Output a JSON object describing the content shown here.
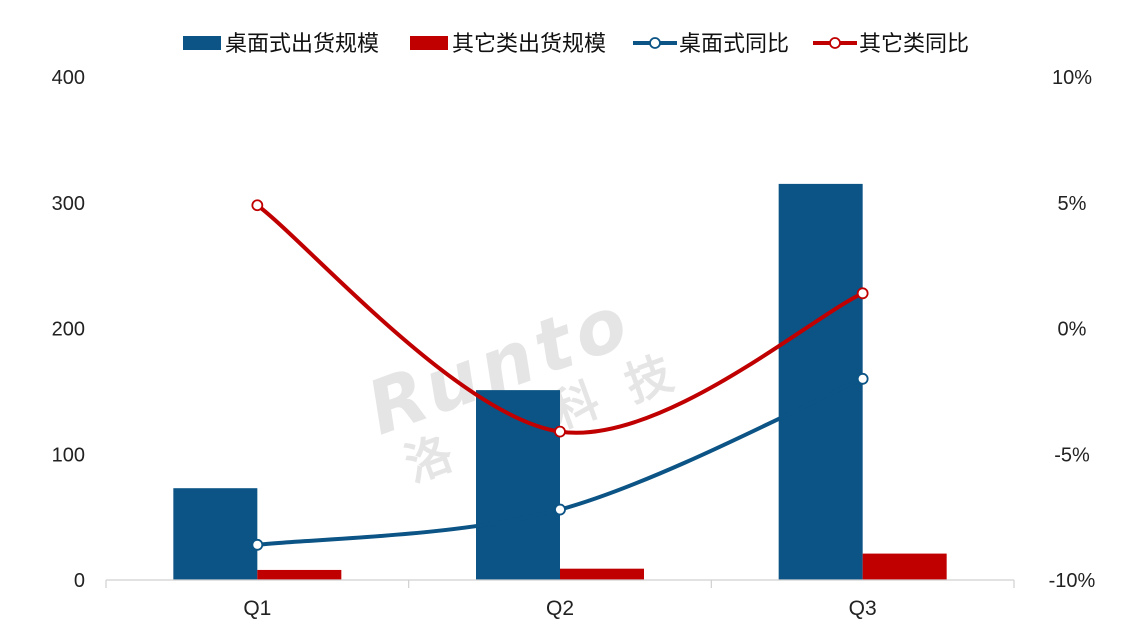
{
  "chart_data": {
    "type": "bar",
    "categories": [
      "Q1",
      "Q2",
      "Q3"
    ],
    "series": [
      {
        "name": "桌面式出货规模",
        "kind": "bar",
        "axis": "left",
        "color": "#0b5485",
        "values": [
          73,
          151,
          315
        ]
      },
      {
        "name": "其它类出货规模",
        "kind": "bar",
        "axis": "left",
        "color": "#c00000",
        "values": [
          8,
          9,
          21
        ]
      },
      {
        "name": "桌面式同比",
        "kind": "line",
        "axis": "right",
        "color": "#0b5485",
        "values": [
          -8.6,
          -7.2,
          -2.0
        ]
      },
      {
        "name": "其它类同比",
        "kind": "line",
        "axis": "right",
        "color": "#c00000",
        "values": [
          4.9,
          -4.1,
          1.4
        ]
      }
    ],
    "left_axis": {
      "min": 0,
      "max": 400,
      "ticks": [
        "0",
        "100",
        "200",
        "300",
        "400"
      ]
    },
    "right_axis": {
      "min": -10,
      "max": 10,
      "ticks": [
        "-10%",
        "-5%",
        "0%",
        "5%",
        "10%"
      ]
    },
    "legend_position": "top",
    "grid": false,
    "watermark": {
      "brand": "Runto",
      "text": "洛图科技"
    }
  }
}
